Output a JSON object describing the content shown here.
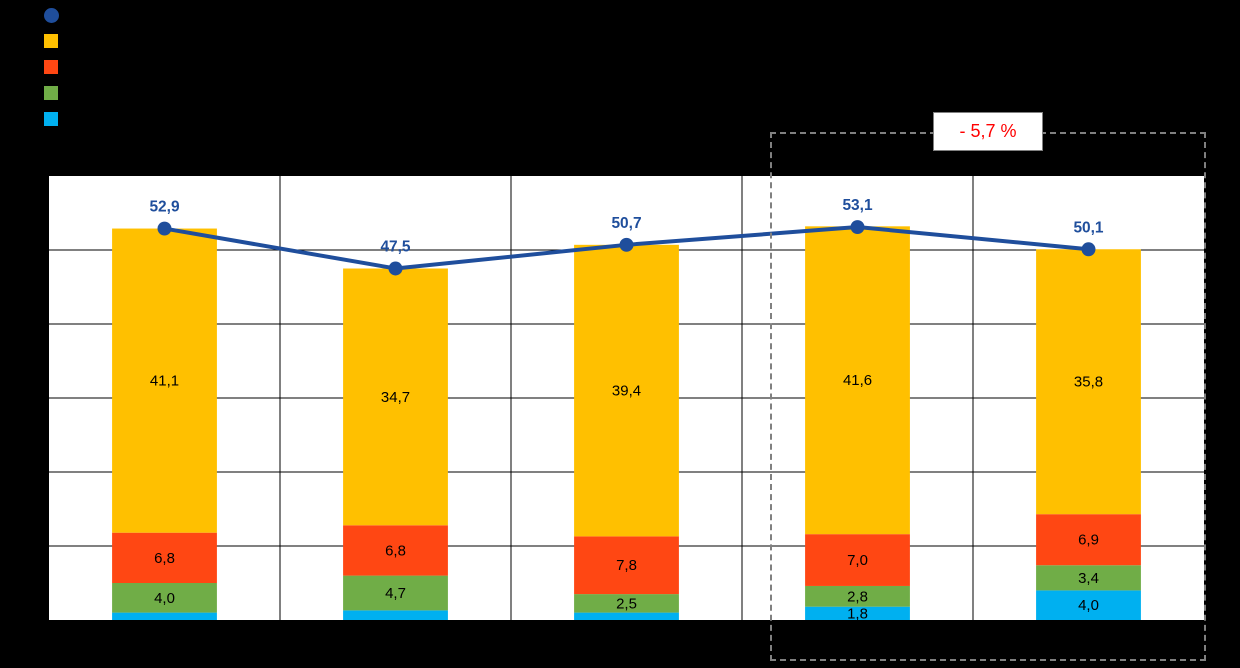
{
  "canvas": {
    "background": "#000000",
    "plot_background": "#ffffff"
  },
  "legend": {
    "items": [
      {
        "name": "total-line",
        "marker": "circle",
        "color": "#1F4E9C"
      },
      {
        "name": "series-orange",
        "marker": "square",
        "color": "#FFC000"
      },
      {
        "name": "series-red",
        "marker": "square",
        "color": "#FF4713"
      },
      {
        "name": "series-green",
        "marker": "square",
        "color": "#70AD47"
      },
      {
        "name": "series-cyan",
        "marker": "square",
        "color": "#00B0F0"
      }
    ]
  },
  "annotation": {
    "label": "- 5,7 %",
    "color": "#FF0000"
  },
  "chart_data": {
    "type": "bar",
    "stacked": true,
    "categories": [
      "",
      "",
      "",
      "",
      ""
    ],
    "series": [
      {
        "name": "cyan",
        "color": "#00B0F0",
        "values": [
          1.0,
          1.3,
          1.0,
          1.8,
          4.0
        ],
        "labels": [
          "",
          "",
          "",
          "1,8",
          "4,0"
        ]
      },
      {
        "name": "green",
        "color": "#70AD47",
        "values": [
          4.0,
          4.7,
          2.5,
          2.8,
          3.4
        ],
        "labels": [
          "4,0",
          "4,7",
          "2,5",
          "2,8",
          "3,4"
        ]
      },
      {
        "name": "red",
        "color": "#FF4713",
        "values": [
          6.8,
          6.8,
          7.8,
          7.0,
          6.9
        ],
        "labels": [
          "6,8",
          "6,8",
          "7,8",
          "7,0",
          "6,9"
        ]
      },
      {
        "name": "orange",
        "color": "#FFC000",
        "values": [
          41.1,
          34.7,
          39.4,
          41.6,
          35.8
        ],
        "labels": [
          "41,1",
          "34,7",
          "39,4",
          "41,6",
          "35,8"
        ]
      }
    ],
    "line": {
      "name": "total",
      "color": "#1F4E9C",
      "values": [
        52.9,
        47.5,
        50.7,
        53.1,
        50.1
      ],
      "labels": [
        "52,9",
        "47,5",
        "50,7",
        "53,1",
        "50,1"
      ]
    },
    "ylim": [
      0,
      60
    ],
    "grid": {
      "y_step": 10,
      "vertical_dividers": true
    },
    "annotation_box": {
      "label": "- 5,7 %",
      "covers_categories": [
        4,
        5
      ]
    }
  }
}
